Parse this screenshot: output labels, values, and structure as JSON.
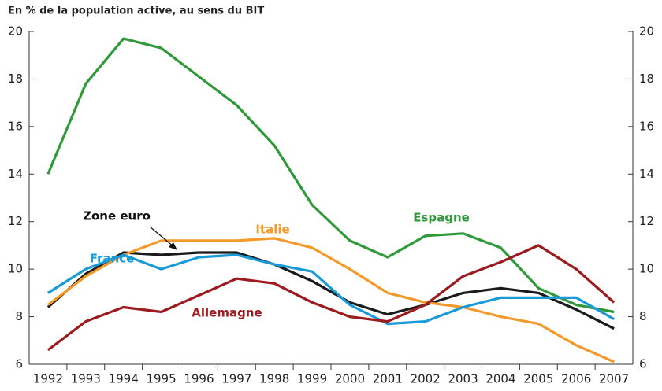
{
  "chart_data": {
    "type": "line",
    "title": "En % de la population active, au sens du BIT",
    "categories": [
      "1992",
      "1993",
      "1994",
      "1995",
      "1996",
      "1997",
      "1998",
      "1999",
      "2000",
      "2001",
      "2002",
      "2003",
      "2004",
      "2005",
      "2006",
      "2007"
    ],
    "series": [
      {
        "name": "Espagne",
        "color": "#2e9a3a",
        "values": [
          14.0,
          17.8,
          19.7,
          19.3,
          18.1,
          16.9,
          15.2,
          12.7,
          11.2,
          10.5,
          11.4,
          11.5,
          10.9,
          9.2,
          8.5,
          8.2
        ]
      },
      {
        "name": "Zone euro",
        "color": "#1a1a1a",
        "values": [
          8.4,
          9.8,
          10.7,
          10.6,
          10.7,
          10.7,
          10.2,
          9.5,
          8.6,
          8.1,
          8.5,
          9.0,
          9.2,
          9.0,
          8.3,
          7.5
        ]
      },
      {
        "name": "Italie",
        "color": "#f39a2b",
        "values": [
          8.5,
          9.7,
          10.6,
          11.2,
          11.2,
          11.2,
          11.3,
          10.9,
          10.0,
          9.0,
          8.6,
          8.4,
          8.0,
          7.7,
          6.8,
          6.1
        ]
      },
      {
        "name": "France",
        "color": "#1a9ad6",
        "values": [
          9.0,
          10.0,
          10.6,
          10.0,
          10.5,
          10.6,
          10.2,
          9.9,
          8.5,
          7.7,
          7.8,
          8.4,
          8.8,
          8.8,
          8.8,
          7.9
        ]
      },
      {
        "name": "Allemagne",
        "color": "#9b1b1f",
        "values": [
          6.6,
          7.8,
          8.4,
          8.2,
          8.9,
          9.6,
          9.4,
          8.6,
          8.0,
          7.8,
          8.5,
          9.7,
          10.3,
          11.0,
          10.0,
          8.6
        ]
      }
    ],
    "ylim": [
      6,
      20
    ],
    "yticks": [
      6,
      8,
      10,
      12,
      14,
      16,
      18,
      20
    ]
  }
}
